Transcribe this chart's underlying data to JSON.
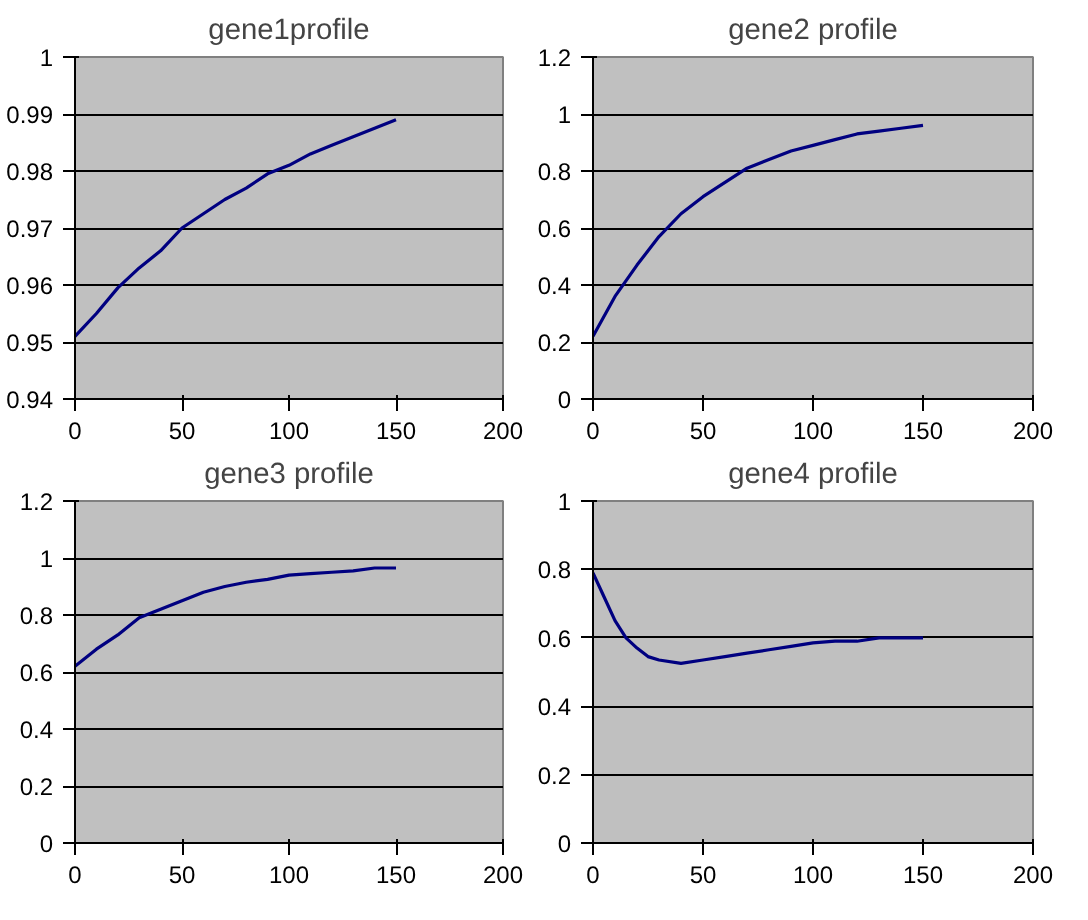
{
  "chart_data": [
    {
      "type": "line",
      "title": "gene1profile",
      "x": [
        0,
        10,
        20,
        30,
        40,
        50,
        60,
        70,
        80,
        90,
        100,
        110,
        120,
        130,
        140,
        150
      ],
      "series": [
        {
          "color": "#000080",
          "values": [
            0.951,
            0.955,
            0.9595,
            0.963,
            0.966,
            0.97,
            0.9725,
            0.975,
            0.977,
            0.9795,
            0.981,
            0.983,
            0.9845,
            0.986,
            0.9875,
            0.989
          ]
        }
      ],
      "xlim": [
        0,
        200
      ],
      "xticks": [
        0,
        50,
        100,
        150,
        200
      ],
      "ylim": [
        0.94,
        1
      ],
      "yticks": [
        0.94,
        0.95,
        0.96,
        0.97,
        0.98,
        0.99,
        1
      ],
      "grid": "y",
      "marker": "none",
      "line_style": "solid"
    },
    {
      "type": "line",
      "title": "gene2 profile",
      "x": [
        0,
        10,
        20,
        30,
        40,
        50,
        60,
        70,
        80,
        90,
        100,
        110,
        120,
        130,
        140,
        150
      ],
      "series": [
        {
          "color": "#000080",
          "values": [
            0.22,
            0.36,
            0.47,
            0.57,
            0.65,
            0.71,
            0.76,
            0.81,
            0.84,
            0.87,
            0.89,
            0.91,
            0.93,
            0.94,
            0.95,
            0.96
          ]
        }
      ],
      "xlim": [
        0,
        200
      ],
      "xticks": [
        0,
        50,
        100,
        150,
        200
      ],
      "ylim": [
        0,
        1.2
      ],
      "yticks": [
        0,
        0.2,
        0.4,
        0.6,
        0.8,
        1,
        1.2
      ],
      "grid": "y",
      "marker": "none",
      "line_style": "solid"
    },
    {
      "type": "line",
      "title": "gene3 profile",
      "x": [
        0,
        10,
        20,
        30,
        40,
        50,
        60,
        70,
        80,
        90,
        100,
        110,
        120,
        130,
        140,
        150
      ],
      "series": [
        {
          "color": "#000080",
          "values": [
            0.62,
            0.68,
            0.73,
            0.79,
            0.82,
            0.85,
            0.88,
            0.9,
            0.915,
            0.925,
            0.94,
            0.945,
            0.95,
            0.955,
            0.965,
            0.965
          ]
        }
      ],
      "xlim": [
        0,
        200
      ],
      "xticks": [
        0,
        50,
        100,
        150,
        200
      ],
      "ylim": [
        0,
        1.2
      ],
      "yticks": [
        0,
        0.2,
        0.4,
        0.6,
        0.8,
        1,
        1.2
      ],
      "grid": "y",
      "marker": "none",
      "line_style": "solid"
    },
    {
      "type": "line",
      "title": "gene4 profile",
      "x": [
        0,
        5,
        10,
        15,
        20,
        25,
        30,
        40,
        50,
        60,
        70,
        80,
        90,
        100,
        110,
        120,
        130,
        140,
        150
      ],
      "series": [
        {
          "color": "#000080",
          "values": [
            0.79,
            0.72,
            0.65,
            0.6,
            0.57,
            0.545,
            0.535,
            0.525,
            0.535,
            0.545,
            0.555,
            0.565,
            0.575,
            0.585,
            0.59,
            0.59,
            0.6,
            0.6,
            0.6
          ]
        }
      ],
      "xlim": [
        0,
        200
      ],
      "xticks": [
        0,
        50,
        100,
        150,
        200
      ],
      "ylim": [
        0,
        1
      ],
      "yticks": [
        0,
        0.2,
        0.4,
        0.6,
        0.8,
        1
      ],
      "grid": "y",
      "marker": "none",
      "line_style": "solid"
    }
  ]
}
